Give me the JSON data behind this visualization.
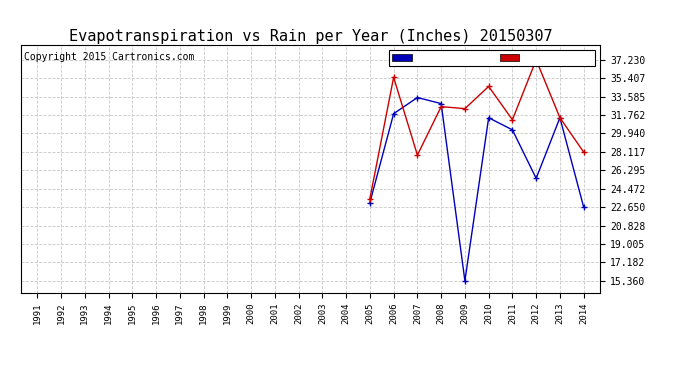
{
  "title": "Evapotranspiration vs Rain per Year (Inches) 20150307",
  "copyright": "Copyright 2015 Cartronics.com",
  "x_years": [
    1991,
    1992,
    1993,
    1994,
    1995,
    1996,
    1997,
    1998,
    1999,
    2000,
    2001,
    2002,
    2003,
    2004,
    2005,
    2006,
    2007,
    2008,
    2009,
    2010,
    2011,
    2012,
    2013,
    2014
  ],
  "rain_data": {
    "years": [
      2005,
      2006,
      2007,
      2008,
      2009,
      2010,
      2011,
      2012,
      2013,
      2014
    ],
    "values": [
      23.1,
      31.9,
      33.5,
      32.9,
      15.36,
      31.5,
      30.3,
      25.5,
      31.5,
      22.65
    ]
  },
  "et_data": {
    "years": [
      2005,
      2006,
      2007,
      2008,
      2009,
      2010,
      2011,
      2012,
      2013,
      2014
    ],
    "values": [
      23.5,
      35.5,
      27.8,
      32.6,
      32.4,
      34.6,
      31.3,
      37.23,
      31.5,
      28.1
    ]
  },
  "yticks": [
    15.36,
    17.182,
    19.005,
    20.828,
    22.65,
    24.472,
    26.295,
    28.117,
    29.94,
    31.762,
    33.585,
    35.407,
    37.23
  ],
  "ymin": 14.2,
  "ymax": 38.7,
  "rain_color": "#0000bb",
  "et_color": "#cc0000",
  "background_color": "#ffffff",
  "legend_rain_bg": "#0000bb",
  "legend_et_bg": "#cc0000",
  "title_fontsize": 11,
  "copyright_fontsize": 7
}
